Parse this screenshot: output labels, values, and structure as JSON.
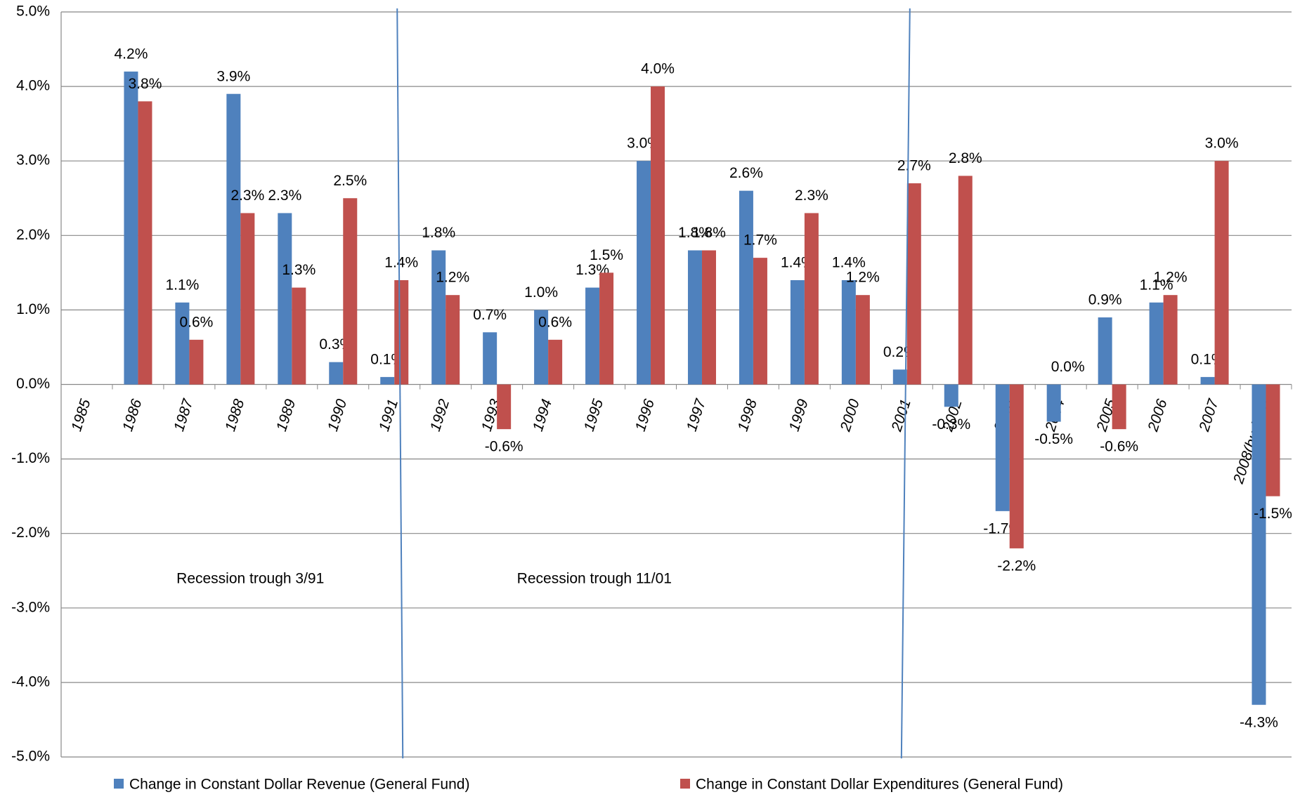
{
  "chart_data": {
    "type": "bar",
    "categories": [
      "1985",
      "1986",
      "1987",
      "1988",
      "1989",
      "1990",
      "1991",
      "1992",
      "1993",
      "1994",
      "1995",
      "1996",
      "1997",
      "1998",
      "1999",
      "2000",
      "2001",
      "2002",
      "2003",
      "2004",
      "2005",
      "2006",
      "2007",
      "2008(budget)"
    ],
    "series": [
      {
        "name": "Change in Constant Dollar Revenue (General Fund)",
        "color": "#4f81bd",
        "values": [
          null,
          4.2,
          1.1,
          3.9,
          2.3,
          0.3,
          0.1,
          1.8,
          0.7,
          1.0,
          1.3,
          3.0,
          1.8,
          2.6,
          1.4,
          1.4,
          0.2,
          -0.3,
          -1.7,
          -0.5,
          0.9,
          1.1,
          0.1,
          -4.3
        ],
        "value_labels": [
          null,
          "4.2%",
          "1.1%",
          "3.9%",
          "2.3%",
          "0.3%",
          "0.1%",
          "1.8%",
          "0.7%",
          "1.0%",
          "1.3%",
          "3.0%",
          "1.8%",
          "2.6%",
          "1.4%",
          "1.4%",
          "0.2%",
          "-0.3%",
          "-1.7%",
          "-0.5%",
          "0.9%",
          "1.1%",
          "0.1%",
          "-4.3%"
        ]
      },
      {
        "name": "Change in Constant Dollar Expenditures (General Fund)",
        "color": "#c0504d",
        "values": [
          null,
          3.8,
          0.6,
          2.3,
          1.3,
          2.5,
          1.4,
          1.2,
          -0.6,
          0.6,
          1.5,
          4.0,
          1.8,
          1.7,
          2.3,
          1.2,
          2.7,
          2.8,
          -2.2,
          0.0,
          -0.6,
          1.2,
          3.0,
          -1.5
        ],
        "value_labels": [
          null,
          "3.8%",
          "0.6%",
          "2.3%",
          "1.3%",
          "2.5%",
          "1.4%",
          "1.2%",
          "-0.6%",
          "0.6%",
          "1.5%",
          "4.0%",
          "1.8%",
          "1.7%",
          "2.3%",
          "1.2%",
          "2.7%",
          "2.8%",
          "-2.2%",
          "0.0%",
          "-0.6%",
          "1.2%",
          "3.0%",
          "-1.5%"
        ]
      }
    ],
    "ylim": [
      -5,
      5
    ],
    "yticks": [
      {
        "value": -5,
        "label": "-5.0%"
      },
      {
        "value": -4,
        "label": "-4.0%"
      },
      {
        "value": -3,
        "label": "-3.0%"
      },
      {
        "value": -2,
        "label": "-2.0%"
      },
      {
        "value": -1,
        "label": "-1.0%"
      },
      {
        "value": 0,
        "label": "0.0%"
      },
      {
        "value": 1,
        "label": "1.0%"
      },
      {
        "value": 2,
        "label": "2.0%"
      },
      {
        "value": 3,
        "label": "3.0%"
      },
      {
        "value": 4,
        "label": "4.0%"
      },
      {
        "value": 5,
        "label": "5.0%"
      }
    ],
    "grid": true,
    "annotations": [
      {
        "text": "Recession trough 3/91",
        "category": "1991"
      },
      {
        "text": "Recession trough 11/01",
        "category": "2001"
      }
    ]
  }
}
